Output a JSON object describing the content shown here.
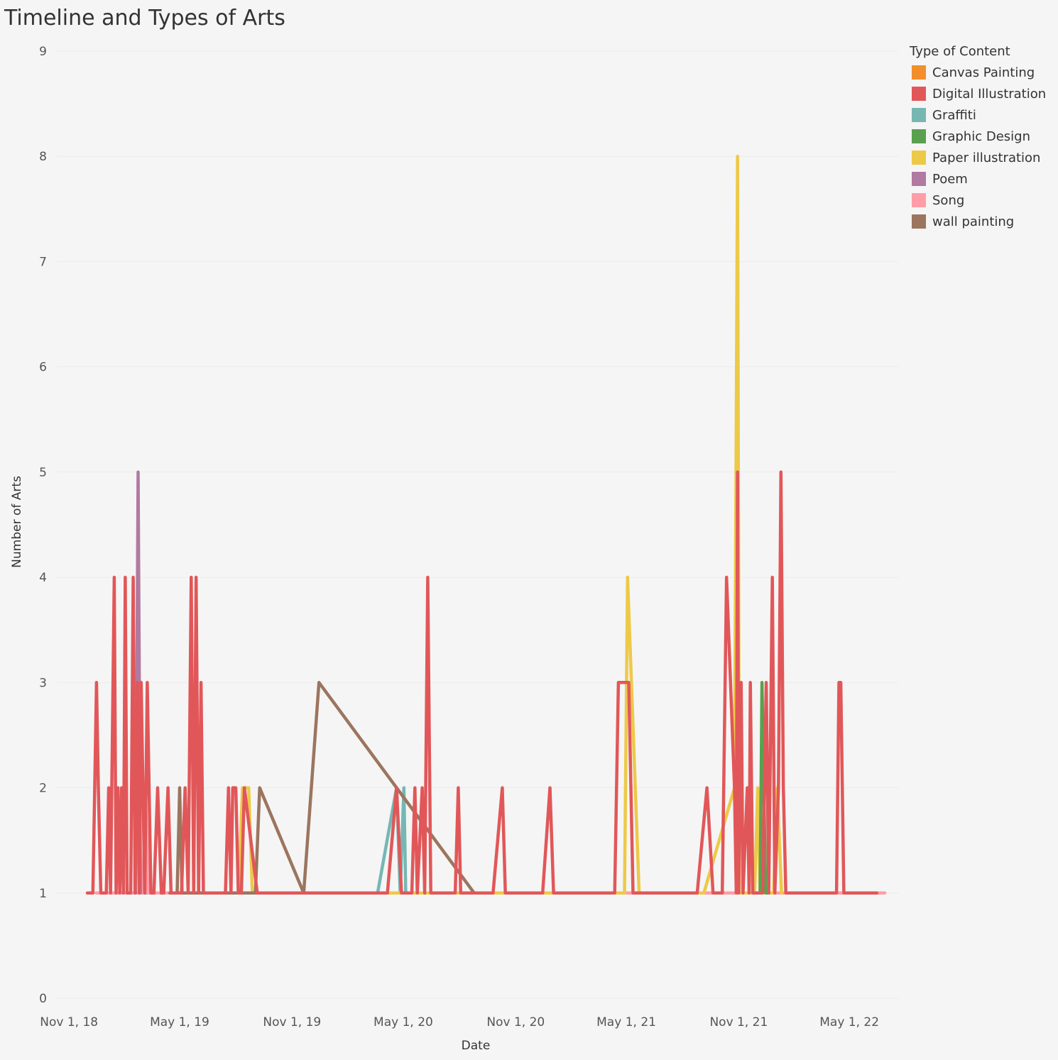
{
  "chart_data": {
    "type": "line",
    "title": "Timeline and Types of Arts",
    "xlabel": "Date",
    "ylabel": "Number of Arts",
    "ylim": [
      0,
      9
    ],
    "yticks": [
      0,
      1,
      2,
      3,
      4,
      5,
      6,
      7,
      8,
      9
    ],
    "xlim": [
      "2018-10-12",
      "2022-07-20"
    ],
    "xticks": [
      {
        "date": "2018-11-01",
        "label": "Nov 1, 18"
      },
      {
        "date": "2019-05-01",
        "label": "May 1, 19"
      },
      {
        "date": "2019-11-01",
        "label": "Nov 1, 19"
      },
      {
        "date": "2020-05-01",
        "label": "May 1, 20"
      },
      {
        "date": "2020-11-01",
        "label": "Nov 1, 20"
      },
      {
        "date": "2021-05-01",
        "label": "May 1, 21"
      },
      {
        "date": "2021-11-01",
        "label": "Nov 1, 21"
      },
      {
        "date": "2022-05-01",
        "label": "May 1, 22"
      }
    ],
    "legend": {
      "title": "Type of Content",
      "position": "right"
    },
    "grid": true,
    "series": [
      {
        "name": "Canvas Painting",
        "color": "#f28e2b",
        "points": [
          [
            "2019-01-10",
            1
          ],
          [
            "2019-01-18",
            1
          ]
        ]
      },
      {
        "name": "Graffiti",
        "color": "#76b7b2",
        "points": [
          [
            "2019-01-20",
            1
          ],
          [
            "2019-02-01",
            1
          ],
          [
            "2019-04-10",
            1
          ],
          [
            "2019-05-05",
            1
          ],
          [
            "2019-06-20",
            1
          ],
          [
            "2019-08-01",
            1
          ],
          [
            "2019-08-10",
            1
          ],
          [
            "2019-08-25",
            1
          ],
          [
            "2019-09-05",
            1
          ],
          [
            "2020-03-20",
            1
          ],
          [
            "2020-04-20",
            2
          ],
          [
            "2020-04-26",
            1
          ],
          [
            "2020-05-02",
            2
          ],
          [
            "2020-05-05",
            1
          ],
          [
            "2020-05-20",
            1
          ],
          [
            "2020-08-01",
            1
          ],
          [
            "2021-04-15",
            1
          ],
          [
            "2021-04-28",
            1
          ],
          [
            "2021-08-15",
            1
          ],
          [
            "2021-09-10",
            1
          ],
          [
            "2021-10-10",
            1
          ],
          [
            "2021-11-01",
            1
          ],
          [
            "2021-12-01",
            1
          ],
          [
            "2022-01-20",
            1
          ],
          [
            "2022-03-15",
            1
          ]
        ]
      },
      {
        "name": "Song",
        "color": "#ff9da7",
        "points": [
          [
            "2018-12-15",
            1
          ],
          [
            "2019-03-02",
            1
          ],
          [
            "2019-03-06",
            2
          ],
          [
            "2019-03-10",
            1
          ],
          [
            "2022-06-20",
            1
          ],
          [
            "2022-06-28",
            1
          ]
        ]
      },
      {
        "name": "Paper illustration",
        "color": "#edc948",
        "points": [
          [
            "2019-08-05",
            1
          ],
          [
            "2019-08-12",
            2
          ],
          [
            "2019-08-22",
            2
          ],
          [
            "2019-08-28",
            1
          ],
          [
            "2020-04-12",
            1
          ],
          [
            "2020-04-30",
            1
          ],
          [
            "2021-04-28",
            1
          ],
          [
            "2021-05-03",
            4
          ],
          [
            "2021-05-22",
            1
          ],
          [
            "2021-09-05",
            1
          ],
          [
            "2021-10-25",
            2
          ],
          [
            "2021-10-30",
            8
          ],
          [
            "2021-11-02",
            1
          ],
          [
            "2021-11-27",
            1
          ],
          [
            "2021-12-02",
            2
          ],
          [
            "2021-12-06",
            1
          ],
          [
            "2021-12-28",
            1
          ],
          [
            "2022-01-03",
            2
          ],
          [
            "2022-01-10",
            1
          ]
        ]
      },
      {
        "name": "Poem",
        "color": "#b07aa1",
        "points": [
          [
            "2019-02-18",
            1
          ],
          [
            "2019-02-22",
            5
          ],
          [
            "2019-02-26",
            1
          ]
        ]
      },
      {
        "name": "Graphic Design",
        "color": "#59a14f",
        "points": [
          [
            "2021-12-06",
            1
          ],
          [
            "2021-12-09",
            3
          ],
          [
            "2021-12-15",
            1
          ],
          [
            "2021-12-20",
            1
          ]
        ]
      },
      {
        "name": "wall painting",
        "color": "#9c755f",
        "points": [
          [
            "2019-04-15",
            1
          ],
          [
            "2019-04-27",
            1
          ],
          [
            "2019-05-01",
            2
          ],
          [
            "2019-05-05",
            1
          ],
          [
            "2019-09-02",
            1
          ],
          [
            "2019-09-09",
            2
          ],
          [
            "2019-11-20",
            1
          ],
          [
            "2019-12-15",
            3
          ],
          [
            "2020-08-25",
            1
          ],
          [
            "2020-09-15",
            1
          ]
        ]
      },
      {
        "name": "Digital Illustration",
        "color": "#e15759",
        "points": [
          [
            "2018-12-01",
            1
          ],
          [
            "2018-12-10",
            1
          ],
          [
            "2018-12-13",
            2
          ],
          [
            "2018-12-16",
            3
          ],
          [
            "2018-12-19",
            2
          ],
          [
            "2018-12-23",
            1
          ],
          [
            "2019-01-01",
            1
          ],
          [
            "2019-01-05",
            2
          ],
          [
            "2019-01-08",
            1
          ],
          [
            "2019-01-14",
            4
          ],
          [
            "2019-01-17",
            1
          ],
          [
            "2019-01-20",
            2
          ],
          [
            "2019-01-23",
            1
          ],
          [
            "2019-01-26",
            2
          ],
          [
            "2019-01-29",
            1
          ],
          [
            "2019-02-01",
            4
          ],
          [
            "2019-02-04",
            1
          ],
          [
            "2019-02-10",
            1
          ],
          [
            "2019-02-14",
            4
          ],
          [
            "2019-02-17",
            1
          ],
          [
            "2019-02-21",
            3
          ],
          [
            "2019-02-24",
            1
          ],
          [
            "2019-02-27",
            3
          ],
          [
            "2019-03-02",
            2
          ],
          [
            "2019-03-05",
            1
          ],
          [
            "2019-03-09",
            3
          ],
          [
            "2019-03-15",
            1
          ],
          [
            "2019-03-20",
            1
          ],
          [
            "2019-03-26",
            2
          ],
          [
            "2019-04-01",
            1
          ],
          [
            "2019-04-05",
            1
          ],
          [
            "2019-04-12",
            2
          ],
          [
            "2019-04-17",
            1
          ],
          [
            "2019-04-21",
            1
          ],
          [
            "2019-04-28",
            1
          ],
          [
            "2019-05-04",
            1
          ],
          [
            "2019-05-10",
            2
          ],
          [
            "2019-05-15",
            1
          ],
          [
            "2019-05-20",
            4
          ],
          [
            "2019-05-24",
            1
          ],
          [
            "2019-05-28",
            4
          ],
          [
            "2019-06-01",
            1
          ],
          [
            "2019-06-05",
            3
          ],
          [
            "2019-06-09",
            1
          ],
          [
            "2019-07-15",
            1
          ],
          [
            "2019-07-20",
            2
          ],
          [
            "2019-07-24",
            1
          ],
          [
            "2019-07-27",
            2
          ],
          [
            "2019-08-01",
            2
          ],
          [
            "2019-08-05",
            1
          ],
          [
            "2019-08-10",
            1
          ],
          [
            "2019-08-15",
            2
          ],
          [
            "2019-09-05",
            1
          ],
          [
            "2020-04-05",
            1
          ],
          [
            "2020-04-20",
            2
          ],
          [
            "2020-04-28",
            1
          ],
          [
            "2020-05-15",
            1
          ],
          [
            "2020-05-20",
            2
          ],
          [
            "2020-05-24",
            1
          ],
          [
            "2020-06-01",
            2
          ],
          [
            "2020-06-05",
            1
          ],
          [
            "2020-06-10",
            4
          ],
          [
            "2020-06-15",
            1
          ],
          [
            "2020-07-25",
            1
          ],
          [
            "2020-07-30",
            2
          ],
          [
            "2020-08-03",
            1
          ],
          [
            "2020-09-25",
            1
          ],
          [
            "2020-10-10",
            2
          ],
          [
            "2020-10-15",
            1
          ],
          [
            "2020-12-15",
            1
          ],
          [
            "2020-12-27",
            2
          ],
          [
            "2021-01-02",
            1
          ],
          [
            "2021-04-12",
            1
          ],
          [
            "2021-04-18",
            3
          ],
          [
            "2021-05-05",
            3
          ],
          [
            "2021-05-12",
            1
          ],
          [
            "2021-08-25",
            1
          ],
          [
            "2021-09-10",
            2
          ],
          [
            "2021-09-20",
            1
          ],
          [
            "2021-10-05",
            1
          ],
          [
            "2021-10-12",
            4
          ],
          [
            "2021-10-25",
            2
          ],
          [
            "2021-10-28",
            1
          ],
          [
            "2021-10-30",
            5
          ],
          [
            "2021-11-01",
            1
          ],
          [
            "2021-11-05",
            3
          ],
          [
            "2021-11-08",
            1
          ],
          [
            "2021-11-15",
            2
          ],
          [
            "2021-11-18",
            1
          ],
          [
            "2021-11-20",
            3
          ],
          [
            "2021-11-24",
            1
          ],
          [
            "2021-12-10",
            1
          ],
          [
            "2021-12-16",
            3
          ],
          [
            "2021-12-20",
            1
          ],
          [
            "2021-12-26",
            4
          ],
          [
            "2021-12-30",
            1
          ],
          [
            "2022-01-05",
            2
          ],
          [
            "2022-01-09",
            5
          ],
          [
            "2022-01-13",
            2
          ],
          [
            "2022-01-17",
            1
          ],
          [
            "2022-04-10",
            1
          ],
          [
            "2022-04-14",
            3
          ],
          [
            "2022-04-17",
            3
          ],
          [
            "2022-04-22",
            1
          ],
          [
            "2022-06-15",
            1
          ]
        ]
      }
    ]
  }
}
